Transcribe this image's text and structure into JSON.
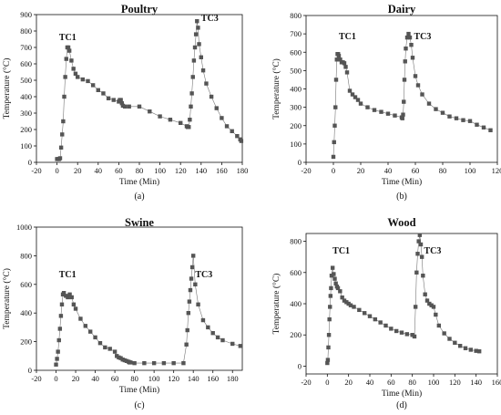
{
  "figure": {
    "panels": [
      {
        "key": "poultry",
        "title": "Poultry",
        "caption": "(a)",
        "xlabel": "Time (Min)",
        "ylabel": "Temperature (°C)"
      },
      {
        "key": "dairy",
        "title": "Dairy",
        "caption": "(b)",
        "xlabel": "Time (Min)",
        "ylabel": "Temperature (°C)"
      },
      {
        "key": "swine",
        "title": "Swine",
        "caption": "(c)",
        "xlabel": "Time (Min)",
        "ylabel": "Temperature (°C)"
      },
      {
        "key": "wood",
        "title": "Wood",
        "caption": "(d)",
        "xlabel": "Time (Min)",
        "ylabel": "Temperature (°C)"
      }
    ]
  },
  "chart_data": [
    {
      "type": "scatter",
      "title": "Poultry",
      "xlabel": "Time (Min)",
      "ylabel": "Temperature (°C)",
      "xlim": [
        -20,
        180
      ],
      "ylim": [
        0,
        900
      ],
      "xticks": [
        -20,
        0,
        20,
        40,
        60,
        80,
        100,
        120,
        140,
        160,
        180
      ],
      "yticks": [
        0,
        100,
        200,
        300,
        400,
        500,
        600,
        700,
        800,
        900
      ],
      "marker_color": "#555555",
      "annotations": [
        {
          "text": "TC1",
          "x": 2,
          "y": 745
        },
        {
          "text": "TC3",
          "x": 140,
          "y": 860
        }
      ],
      "series": [
        {
          "x": [
            0,
            1,
            2,
            3,
            4,
            5,
            6,
            7,
            8,
            9,
            10,
            11,
            12,
            14,
            16,
            18,
            20,
            25,
            30,
            35,
            40,
            45,
            50,
            55,
            60,
            61,
            62,
            63,
            64,
            66,
            70,
            80,
            90,
            100,
            110,
            120,
            126,
            127,
            128,
            129,
            130,
            131,
            132,
            133,
            134,
            135,
            136,
            137,
            138,
            140,
            142,
            145,
            150,
            155,
            160,
            165,
            170,
            175,
            178,
            179
          ],
          "y": [
            20,
            20,
            20,
            25,
            90,
            170,
            250,
            400,
            520,
            630,
            700,
            700,
            680,
            620,
            570,
            540,
            520,
            505,
            495,
            470,
            440,
            420,
            390,
            380,
            370,
            380,
            380,
            360,
            345,
            340,
            340,
            340,
            310,
            280,
            260,
            240,
            220,
            215,
            215,
            260,
            340,
            420,
            520,
            620,
            700,
            780,
            860,
            820,
            720,
            640,
            560,
            480,
            400,
            330,
            270,
            220,
            190,
            160,
            140,
            130
          ]
        }
      ]
    },
    {
      "type": "scatter",
      "title": "Dairy",
      "xlabel": "Time (Min)",
      "ylabel": "Temperature (°C)",
      "xlim": [
        -20,
        120
      ],
      "ylim": [
        0,
        800
      ],
      "xticks": [
        -20,
        0,
        20,
        40,
        60,
        80,
        100,
        120
      ],
      "yticks": [
        0,
        100,
        200,
        300,
        400,
        500,
        600,
        700,
        800
      ],
      "marker_color": "#555555",
      "annotations": [
        {
          "text": "TC1",
          "x": 4,
          "y": 670
        },
        {
          "text": "TC3",
          "x": 59,
          "y": 670
        }
      ],
      "series": [
        {
          "x": [
            0,
            0.5,
            1,
            1.5,
            2,
            2.5,
            3,
            3.5,
            4,
            5,
            6,
            7,
            8,
            9,
            10,
            12,
            14,
            16,
            18,
            20,
            25,
            30,
            35,
            40,
            45,
            50,
            50.5,
            51,
            51.5,
            52,
            52.5,
            53,
            54,
            55,
            56,
            57,
            58,
            60,
            62,
            65,
            70,
            75,
            80,
            85,
            90,
            95,
            100,
            105,
            110,
            115
          ],
          "y": [
            30,
            110,
            200,
            300,
            450,
            560,
            590,
            590,
            580,
            560,
            545,
            545,
            540,
            520,
            490,
            390,
            370,
            355,
            340,
            320,
            300,
            285,
            275,
            265,
            255,
            245,
            240,
            260,
            330,
            450,
            550,
            620,
            680,
            700,
            680,
            640,
            570,
            470,
            420,
            370,
            320,
            290,
            270,
            250,
            240,
            230,
            225,
            205,
            190,
            175
          ]
        }
      ]
    },
    {
      "type": "scatter",
      "title": "Swine",
      "xlabel": "Time (Min)",
      "ylabel": "Temperature (°C)",
      "xlim": [
        -20,
        190
      ],
      "ylim": [
        0,
        1000
      ],
      "xticks": [
        -20,
        0,
        20,
        40,
        60,
        80,
        100,
        120,
        140,
        160,
        180
      ],
      "yticks": [
        0,
        200,
        400,
        600,
        800,
        1000
      ],
      "marker_color": "#555555",
      "annotations": [
        {
          "text": "TC1",
          "x": 3,
          "y": 650
        },
        {
          "text": "TC3",
          "x": 142,
          "y": 650
        }
      ],
      "series": [
        {
          "x": [
            0,
            1,
            2,
            3,
            4,
            5,
            6,
            7,
            8,
            10,
            12,
            14,
            16,
            18,
            20,
            25,
            30,
            35,
            40,
            45,
            50,
            55,
            60,
            62,
            64,
            66,
            68,
            70,
            72,
            74,
            75,
            76,
            80,
            90,
            100,
            110,
            120,
            130,
            133,
            134,
            135,
            136,
            137,
            138,
            139,
            140,
            142,
            145,
            150,
            155,
            160,
            165,
            170,
            180,
            188
          ],
          "y": [
            40,
            80,
            130,
            210,
            290,
            380,
            460,
            530,
            540,
            520,
            510,
            530,
            510,
            460,
            430,
            360,
            310,
            270,
            230,
            190,
            160,
            150,
            130,
            100,
            90,
            85,
            75,
            70,
            65,
            60,
            55,
            55,
            50,
            50,
            50,
            50,
            50,
            50,
            180,
            280,
            400,
            480,
            560,
            640,
            720,
            800,
            600,
            460,
            350,
            300,
            260,
            230,
            210,
            185,
            170
          ]
        }
      ]
    },
    {
      "type": "scatter",
      "title": "Wood",
      "xlabel": "Time (Min)",
      "ylabel": "Temperature (°C)",
      "xlim": [
        -20,
        160
      ],
      "ylim": [
        -50,
        850
      ],
      "xticks": [
        -20,
        0,
        20,
        40,
        60,
        80,
        100,
        120,
        140,
        160
      ],
      "yticks": [
        0,
        200,
        400,
        600,
        800
      ],
      "marker_color": "#555555",
      "annotations": [
        {
          "text": "TC1",
          "x": 5,
          "y": 720
        },
        {
          "text": "TC3",
          "x": 91,
          "y": 720
        }
      ],
      "series": [
        {
          "x": [
            0,
            0.5,
            1,
            1.5,
            2,
            2.5,
            3,
            3.5,
            4,
            5,
            6,
            7,
            8,
            9,
            10,
            12,
            14,
            16,
            18,
            20,
            22,
            25,
            30,
            35,
            40,
            45,
            50,
            55,
            60,
            65,
            70,
            75,
            80,
            82,
            83,
            84,
            85,
            86,
            87,
            88,
            89,
            90,
            92,
            94,
            96,
            98,
            100,
            102,
            105,
            110,
            115,
            120,
            125,
            130,
            135,
            140,
            143
          ],
          "y": [
            20,
            40,
            120,
            200,
            300,
            380,
            450,
            500,
            580,
            630,
            590,
            560,
            530,
            510,
            500,
            480,
            440,
            420,
            410,
            400,
            390,
            380,
            360,
            340,
            320,
            300,
            280,
            260,
            240,
            225,
            215,
            205,
            200,
            190,
            380,
            600,
            720,
            800,
            840,
            780,
            700,
            580,
            460,
            420,
            400,
            390,
            380,
            330,
            260,
            210,
            175,
            150,
            130,
            115,
            105,
            98,
            95
          ]
        }
      ]
    }
  ]
}
